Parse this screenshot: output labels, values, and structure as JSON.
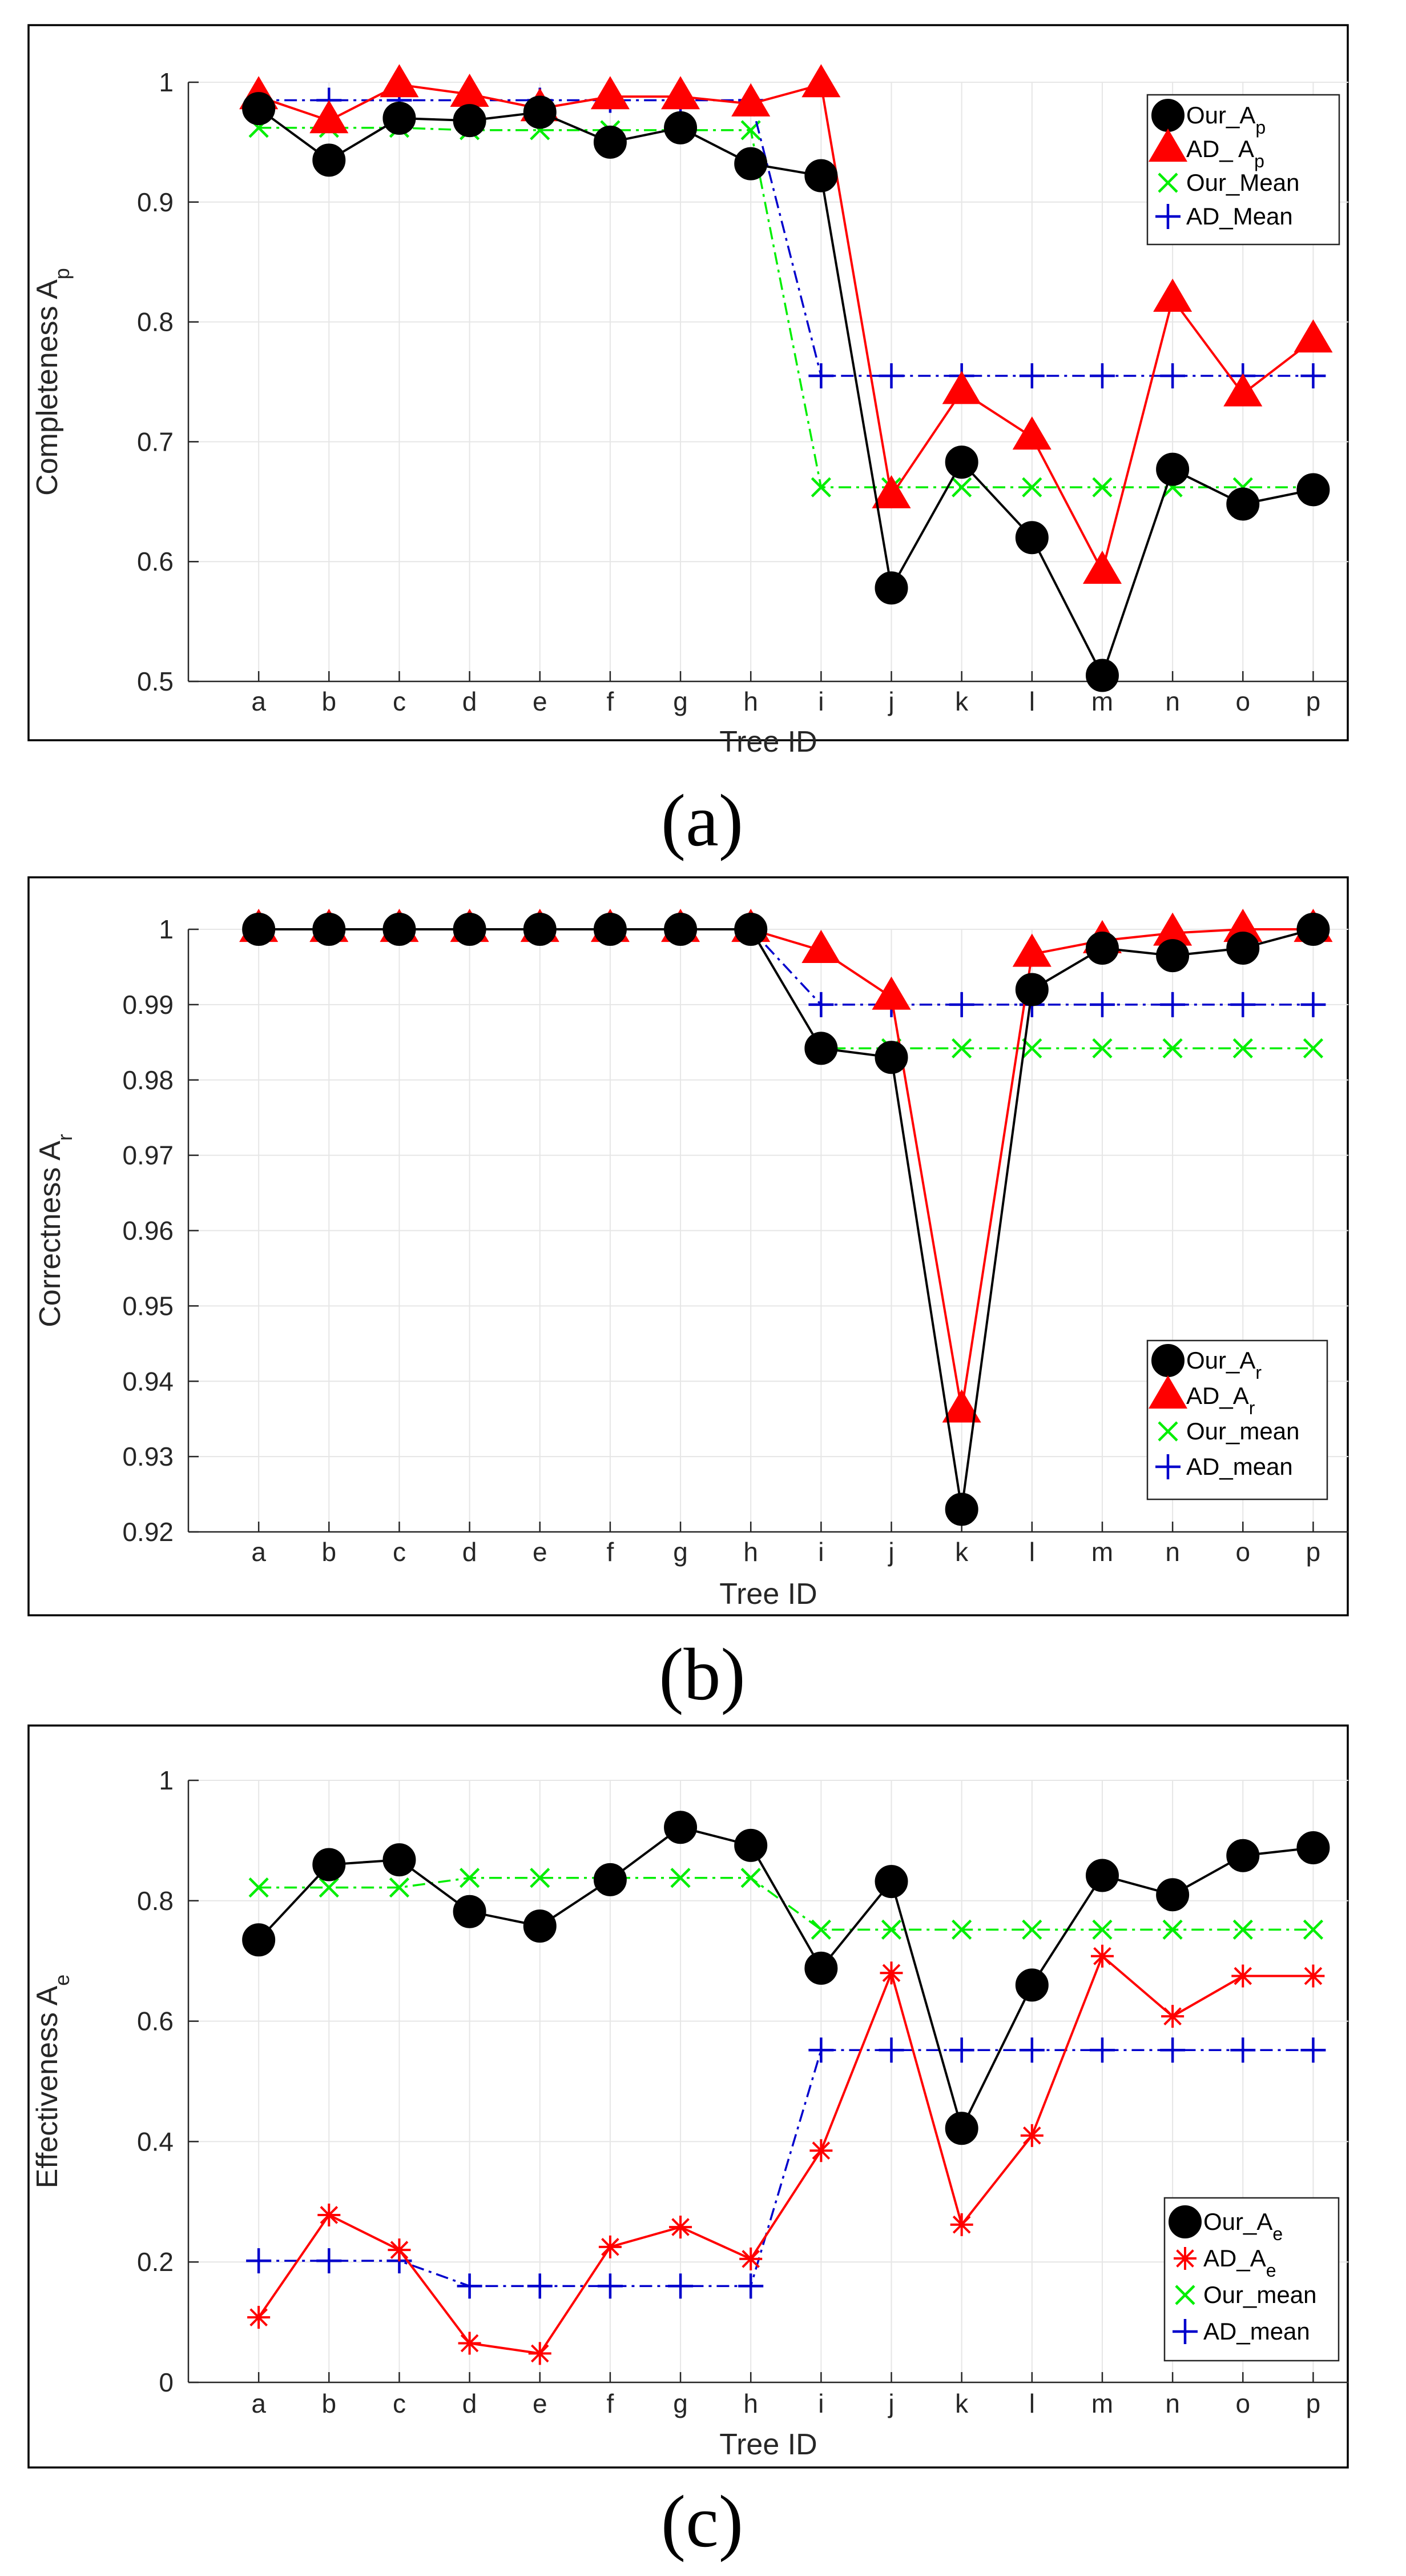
{
  "chart_data": [
    {
      "type": "line",
      "panel_label": "(a)",
      "xlabel": "Tree ID",
      "ylabel": "Completeness A",
      "ylabel_sub": "p",
      "ylim": [
        0.5,
        1.0
      ],
      "yticks": [
        0.5,
        0.6,
        0.7,
        0.8,
        0.9,
        1.0
      ],
      "ytick_labels": [
        "0.5",
        "0.6",
        "0.7",
        "0.8",
        "0.9",
        "1"
      ],
      "grid": true,
      "legend_position": "top-right",
      "categories": [
        "a",
        "b",
        "c",
        "d",
        "e",
        "f",
        "g",
        "h",
        "i",
        "j",
        "k",
        "l",
        "m",
        "n",
        "o",
        "p"
      ],
      "series": [
        {
          "name": "Our_A",
          "name_sub": "p",
          "color": "#000000",
          "marker": "circle",
          "line": "solid",
          "values": [
            0.978,
            0.935,
            0.97,
            0.968,
            0.975,
            0.95,
            0.962,
            0.932,
            0.922,
            0.578,
            0.683,
            0.62,
            0.505,
            0.677,
            0.648,
            0.66
          ]
        },
        {
          "name": "AD_ A",
          "name_sub": "p",
          "color": "#ff0000",
          "marker": "triangle",
          "line": "solid",
          "values": [
            0.988,
            0.968,
            0.998,
            0.99,
            0.978,
            0.988,
            0.988,
            0.982,
            0.998,
            0.655,
            0.742,
            0.704,
            0.592,
            0.819,
            0.74,
            0.785
          ]
        },
        {
          "name": "Our_Mean",
          "name_sub": "",
          "color": "#00ee00",
          "marker": "x",
          "line": "dashdot",
          "values": [
            0.962,
            0.962,
            0.962,
            0.96,
            0.96,
            0.96,
            0.96,
            0.96,
            0.662,
            0.662,
            0.662,
            0.662,
            0.662,
            0.662,
            0.662,
            0.662
          ]
        },
        {
          "name": "AD_Mean",
          "name_sub": "",
          "color": "#0000cc",
          "marker": "plus",
          "line": "dashdot",
          "values": [
            0.985,
            0.985,
            0.985,
            0.985,
            0.985,
            0.985,
            0.985,
            0.985,
            0.755,
            0.755,
            0.755,
            0.755,
            0.755,
            0.755,
            0.755,
            0.755
          ]
        }
      ]
    },
    {
      "type": "line",
      "panel_label": "(b)",
      "xlabel": "Tree ID",
      "ylabel": "Correctness  A",
      "ylabel_sub": "r",
      "ylim": [
        0.92,
        1.0
      ],
      "yticks": [
        0.92,
        0.93,
        0.94,
        0.95,
        0.96,
        0.97,
        0.98,
        0.99,
        1.0
      ],
      "ytick_labels": [
        "0.92",
        "0.93",
        "0.94",
        "0.95",
        "0.96",
        "0.97",
        "0.98",
        "0.99",
        "1"
      ],
      "grid": true,
      "legend_position": "bottom-right",
      "categories": [
        "a",
        "b",
        "c",
        "d",
        "e",
        "f",
        "g",
        "h",
        "i",
        "j",
        "k",
        "l",
        "m",
        "n",
        "o",
        "p"
      ],
      "series": [
        {
          "name": "Our_A",
          "name_sub": "r",
          "color": "#000000",
          "marker": "circle",
          "line": "solid",
          "values": [
            1.0,
            1.0,
            1.0,
            1.0,
            1.0,
            1.0,
            1.0,
            1.0,
            0.9842,
            0.983,
            0.923,
            0.992,
            0.9975,
            0.9965,
            0.9975,
            1.0
          ]
        },
        {
          "name": "AD_A",
          "name_sub": "r",
          "color": "#ff0000",
          "marker": "triangle",
          "line": "solid",
          "values": [
            1.0,
            1.0,
            1.0,
            1.0,
            1.0,
            1.0,
            1.0,
            1.0,
            0.9972,
            0.991,
            0.9362,
            0.9967,
            0.9985,
            0.9995,
            1.0,
            1.0
          ]
        },
        {
          "name": "Our_mean",
          "name_sub": "",
          "color": "#00ee00",
          "marker": "x",
          "line": "dashdot",
          "values": [
            1.0,
            1.0,
            1.0,
            1.0,
            1.0,
            1.0,
            1.0,
            1.0,
            0.9842,
            0.9842,
            0.9842,
            0.9842,
            0.9842,
            0.9842,
            0.9842,
            0.9842
          ]
        },
        {
          "name": "AD_mean",
          "name_sub": "",
          "color": "#0000cc",
          "marker": "plus",
          "line": "dashdot",
          "values": [
            1.0,
            1.0,
            1.0,
            1.0,
            1.0,
            1.0,
            1.0,
            1.0,
            0.99,
            0.99,
            0.99,
            0.99,
            0.99,
            0.99,
            0.99,
            0.99
          ]
        }
      ]
    },
    {
      "type": "line",
      "panel_label": "(c)",
      "xlabel": "Tree ID",
      "ylabel": "Effectiveness A",
      "ylabel_sub": "e",
      "ylim": [
        0,
        1.0
      ],
      "yticks": [
        0,
        0.2,
        0.4,
        0.6,
        0.8,
        1.0
      ],
      "ytick_labels": [
        "0",
        "0.2",
        "0.4",
        "0.6",
        "0.8",
        "1"
      ],
      "grid": true,
      "legend_position": "bottom-right",
      "categories": [
        "a",
        "b",
        "c",
        "d",
        "e",
        "f",
        "g",
        "h",
        "i",
        "j",
        "k",
        "l",
        "m",
        "n",
        "o",
        "p"
      ],
      "series": [
        {
          "name": "Our_A",
          "name_sub": "e",
          "color": "#000000",
          "marker": "circle",
          "line": "solid",
          "values": [
            0.735,
            0.86,
            0.868,
            0.782,
            0.758,
            0.835,
            0.922,
            0.892,
            0.688,
            0.832,
            0.422,
            0.66,
            0.842,
            0.81,
            0.875,
            0.888
          ]
        },
        {
          "name": "AD_A",
          "name_sub": "e",
          "color": "#ff0000",
          "marker": "asterisk",
          "line": "solid",
          "values": [
            0.108,
            0.278,
            0.22,
            0.065,
            0.048,
            0.225,
            0.258,
            0.205,
            0.385,
            0.68,
            0.262,
            0.41,
            0.708,
            0.608,
            0.675,
            0.675
          ]
        },
        {
          "name": "Our_mean",
          "name_sub": "",
          "color": "#00ee00",
          "marker": "x",
          "line": "dashdot",
          "values": [
            0.822,
            0.822,
            0.822,
            0.838,
            0.838,
            0.838,
            0.838,
            0.838,
            0.752,
            0.752,
            0.752,
            0.752,
            0.752,
            0.752,
            0.752,
            0.752
          ]
        },
        {
          "name": "AD_mean",
          "name_sub": "",
          "color": "#0000cc",
          "marker": "plus",
          "line": "dashdot",
          "values": [
            0.202,
            0.202,
            0.202,
            0.16,
            0.16,
            0.16,
            0.16,
            0.16,
            0.552,
            0.552,
            0.552,
            0.552,
            0.552,
            0.552,
            0.552,
            0.552
          ]
        }
      ]
    }
  ]
}
